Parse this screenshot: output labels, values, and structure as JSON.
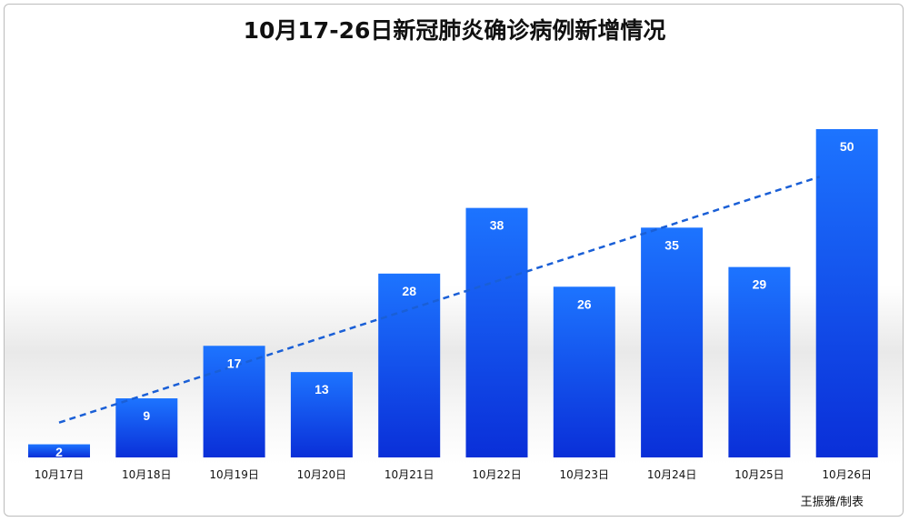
{
  "chart_data": {
    "type": "bar",
    "title": "10月17-26日新冠肺炎确诊病例新增情况",
    "categories": [
      "10月17日",
      "10月18日",
      "10月19日",
      "10月20日",
      "10月21日",
      "10月22日",
      "10月23日",
      "10月24日",
      "10月25日",
      "10月26日"
    ],
    "values": [
      2,
      9,
      17,
      13,
      28,
      38,
      26,
      35,
      29,
      50
    ],
    "ylim": [
      0,
      50
    ],
    "trendline": {
      "style": "dashed",
      "color": "#1a5fd6"
    },
    "colors": {
      "bar_top": "#1d74ff",
      "bar_bottom": "#0a2fd8",
      "label": "#ffffff",
      "trend": "#1a5fd6"
    },
    "grid": false,
    "legend": "none"
  },
  "credit": "王振雅/制表"
}
